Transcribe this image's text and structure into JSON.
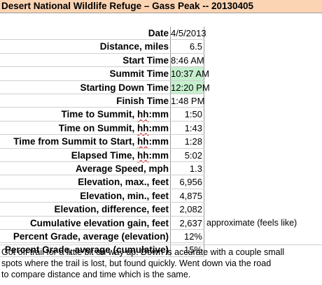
{
  "title": "Desert National Wildlife Refuge – Gass Peak -- 20130405",
  "rows": [
    {
      "label": "Date",
      "value": "4/5/2013"
    },
    {
      "label": "Distance, miles",
      "value": "6.5"
    },
    {
      "label": "Start Time",
      "value": "8:46 AM"
    },
    {
      "label": "Summit Time",
      "value": "10:37 AM",
      "highlight": true
    },
    {
      "label": "Starting Down Time",
      "value": "12:20 PM",
      "highlight": true
    },
    {
      "label": "Finish Time",
      "value": "1:48 PM"
    },
    {
      "label": "Time to Summit, ",
      "label_suffix": "hh",
      "label_tail": ":mm",
      "value": "1:50"
    },
    {
      "label": "Time on Summit, ",
      "label_suffix": "hh",
      "label_tail": ":mm",
      "value": "1:43"
    },
    {
      "label": "Time from Summit to Start, ",
      "label_suffix": "hh",
      "label_tail": ":mm",
      "value": "1:28"
    },
    {
      "label": "Elapsed Time, ",
      "label_suffix": "hh",
      "label_tail": ":mm",
      "value": "5:02"
    },
    {
      "label": "Average Speed, mph",
      "value": "1.3"
    },
    {
      "label": "Elevation, max., feet",
      "value": "6,956"
    },
    {
      "label": "Elevation, min., feet",
      "value": "4,875"
    },
    {
      "label": "Elevation, difference, feet",
      "value": "2,082"
    },
    {
      "label": "Cumulative elevation gain, feet",
      "value": "2,637",
      "note": "approximate (feels like)"
    },
    {
      "label": "Percent Grade, average (elevation)",
      "value": "12%"
    },
    {
      "label": "Percent Grade, average (cumulative)",
      "value": "15%"
    }
  ],
  "notes": [
    "Got off trail for a little bit on way up. Down is accurate with a couple small",
    "spots where the trail is lost, but found quickly. Went down via the road",
    "to compare distance and time which is the same."
  ],
  "colors": {
    "title_bg": "#fbd4b4",
    "highlight_bg": "#c6efce",
    "grid": "#d0d0d0"
  }
}
